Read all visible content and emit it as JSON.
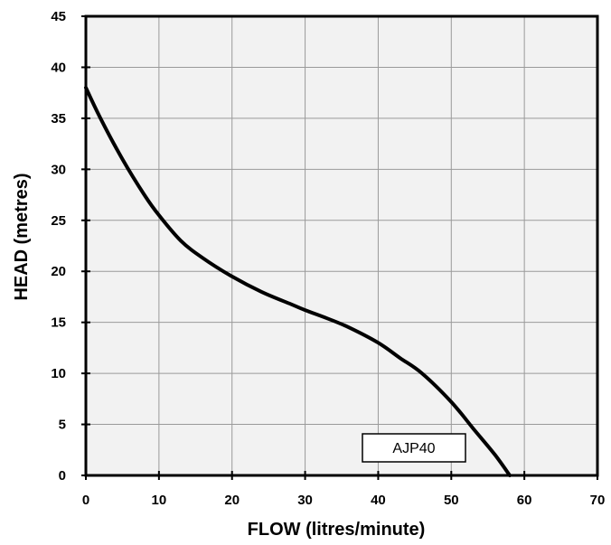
{
  "chart_data": {
    "type": "line",
    "title": "",
    "xlabel": "FLOW (litres/minute)",
    "ylabel": "HEAD (metres)",
    "xlim": [
      0,
      70
    ],
    "ylim": [
      0,
      45
    ],
    "xticks": [
      0,
      10,
      20,
      30,
      40,
      50,
      60,
      70
    ],
    "yticks": [
      0,
      5,
      10,
      15,
      20,
      25,
      30,
      35,
      40,
      45
    ],
    "grid": true,
    "legend_position": "bottom-right",
    "series": [
      {
        "name": "AJP40",
        "color": "#000000",
        "x": [
          0,
          2,
          5,
          8,
          10,
          13,
          16,
          20,
          24,
          28,
          30,
          33,
          36,
          40,
          43,
          46,
          50,
          53,
          56,
          58
        ],
        "y": [
          38,
          35,
          31,
          27.5,
          25.5,
          23,
          21.3,
          19.5,
          18,
          16.8,
          16.2,
          15.4,
          14.5,
          13,
          11.5,
          10,
          7.2,
          4.6,
          2,
          0
        ]
      }
    ],
    "colors": {
      "plot_background": "#f2f2f2",
      "grid": "#9a9a9a",
      "frame": "#000000"
    }
  }
}
